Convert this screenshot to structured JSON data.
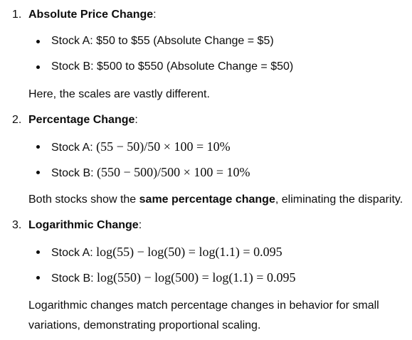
{
  "sections": [
    {
      "number": "1.",
      "heading": "Absolute Price Change",
      "heading_suffix": ":",
      "bullets": [
        {
          "label": "Stock A:",
          "text": "$50 to $55 (Absolute Change = $5)"
        },
        {
          "label": "Stock B:",
          "text": "$500 to $550 (Absolute Change = $50)"
        }
      ],
      "note": "Here, the scales are vastly different."
    },
    {
      "number": "2.",
      "heading": "Percentage Change",
      "heading_suffix": ":",
      "bullets": [
        {
          "label": "Stock A:",
          "math": "(55 − 50)/50 × 100 = 10%"
        },
        {
          "label": "Stock B:",
          "math": "(550 − 500)/500 × 100 = 10%"
        }
      ],
      "note_pre": "Both stocks show the ",
      "note_bold": "same percentage change",
      "note_post": ", eliminating the disparity."
    },
    {
      "number": "3.",
      "heading": "Logarithmic Change",
      "heading_suffix": ":",
      "bullets": [
        {
          "label": "Stock A:",
          "math": "log(55) − log(50) = log(1.1) = 0.095"
        },
        {
          "label": "Stock B:",
          "math": "log(550) − log(500) = log(1.1) = 0.095"
        }
      ],
      "note_line1": "Logarithmic changes match percentage changes in behavior for small",
      "note_line2": "variations, demonstrating proportional scaling."
    }
  ]
}
